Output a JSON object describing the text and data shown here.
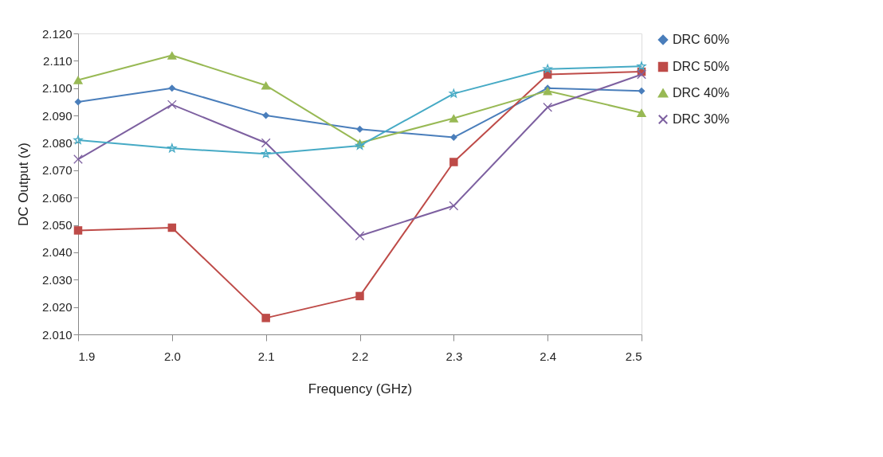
{
  "chart_data": {
    "type": "line",
    "xlabel": "Frequency (GHz)",
    "ylabel": "DC Output (v)",
    "x": [
      1.9,
      2.0,
      2.1,
      2.2,
      2.3,
      2.4,
      2.5
    ],
    "xlim": [
      1.9,
      2.5
    ],
    "xticks": [
      1.9,
      {
        "value": 2.0,
        "label": "2.0"
      },
      2.1,
      2.2,
      2.3,
      2.4,
      2.5
    ],
    "ylim": [
      2.01,
      2.12
    ],
    "yticks": [
      {
        "value": 2.01,
        "label": "2.010"
      },
      {
        "value": 2.02,
        "label": "2.020"
      },
      {
        "value": 2.03,
        "label": "2.030"
      },
      {
        "value": 2.04,
        "label": "2.040"
      },
      {
        "value": 2.05,
        "label": "2.050"
      },
      {
        "value": 2.06,
        "label": "2.060"
      },
      {
        "value": 2.07,
        "label": "2.070"
      },
      {
        "value": 2.08,
        "label": "2.080"
      },
      {
        "value": 2.09,
        "label": "2.090"
      },
      {
        "value": 2.1,
        "label": "2.100"
      },
      {
        "value": 2.11,
        "label": "2.110"
      },
      {
        "value": 2.12,
        "label": "2.120"
      }
    ],
    "grid": false,
    "legend": "right",
    "line_style": "solid",
    "series": [
      {
        "name": "DRC 60%",
        "color": "#4a7ebb",
        "marker": "diamond",
        "values": [
          2.095,
          2.1,
          2.09,
          2.085,
          2.082,
          2.1,
          2.099
        ]
      },
      {
        "name": "DRC 50%",
        "color": "#be4b48",
        "marker": "square",
        "values": [
          2.048,
          2.049,
          2.016,
          2.024,
          2.073,
          2.105,
          2.106
        ]
      },
      {
        "name": "DRC 40%",
        "color": "#98b954",
        "marker": "triangle",
        "values": [
          2.103,
          2.112,
          2.101,
          2.08,
          2.089,
          2.099,
          2.091
        ]
      },
      {
        "name": "DRC 30%",
        "color": "#7d60a0",
        "marker": "cross",
        "values": [
          2.074,
          2.094,
          2.08,
          2.046,
          2.057,
          2.093,
          2.105
        ]
      },
      {
        "color": "#46aac5",
        "marker": "star",
        "values": [
          2.081,
          2.078,
          2.076,
          2.079,
          2.098,
          2.107,
          2.108
        ]
      }
    ]
  }
}
